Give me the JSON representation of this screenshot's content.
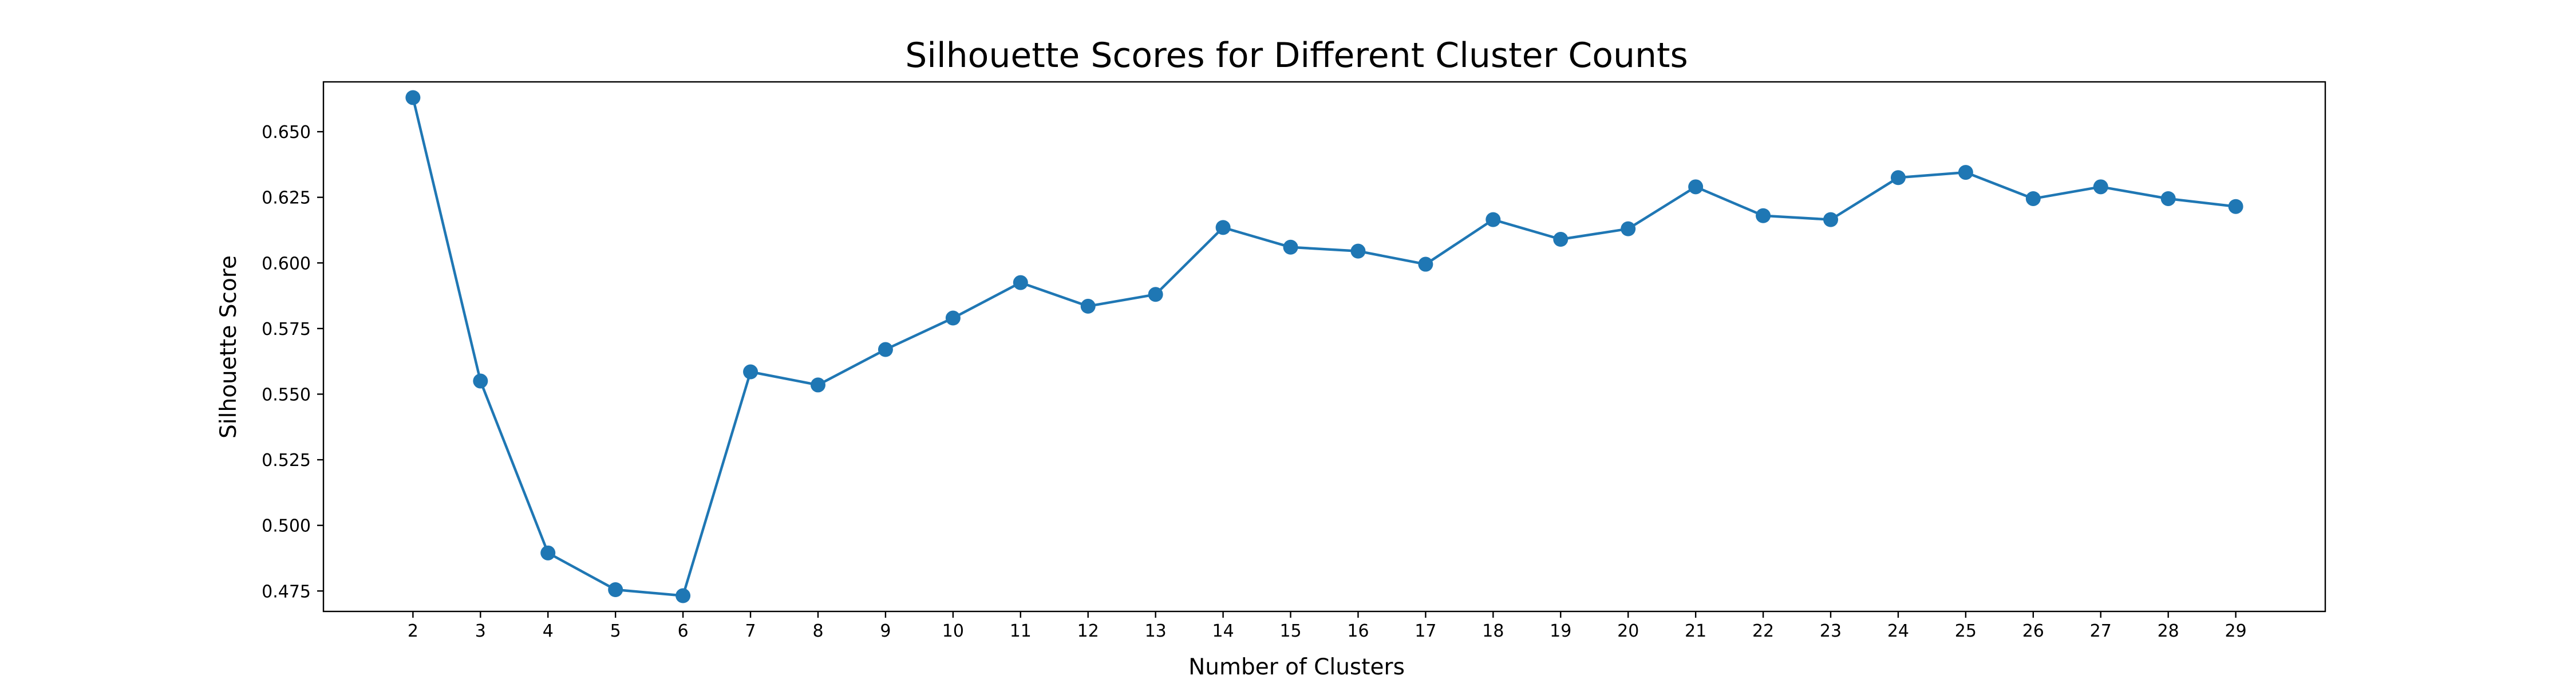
{
  "chart_data": {
    "type": "line",
    "title": "Silhouette Scores for Different Cluster Counts",
    "xlabel": "Number of Clusters",
    "ylabel": "Silhouette Score",
    "x": [
      2,
      3,
      4,
      5,
      6,
      7,
      8,
      9,
      10,
      11,
      12,
      13,
      14,
      15,
      16,
      17,
      18,
      19,
      20,
      21,
      22,
      23,
      24,
      25,
      26,
      27,
      28,
      29
    ],
    "series": [
      {
        "values": [
          0.663,
          0.555,
          0.4895,
          0.4755,
          0.4732,
          0.5585,
          0.5535,
          0.567,
          0.579,
          0.5925,
          0.5835,
          0.588,
          0.6135,
          0.606,
          0.6045,
          0.5995,
          0.6165,
          0.609,
          0.613,
          0.629,
          0.618,
          0.6165,
          0.6325,
          0.6345,
          0.6245,
          0.629,
          0.6245,
          0.6215
        ],
        "color": "#1f77b4",
        "marker": "circle"
      }
    ],
    "xlim": [
      0.674,
      30.326
    ],
    "ylim": [
      0.46721,
      0.66899
    ],
    "xticks": [
      2,
      3,
      4,
      5,
      6,
      7,
      8,
      9,
      10,
      11,
      12,
      13,
      14,
      15,
      16,
      17,
      18,
      19,
      20,
      21,
      22,
      23,
      24,
      25,
      26,
      27,
      28,
      29
    ],
    "yticks": [
      "0.475",
      "0.500",
      "0.525",
      "0.550",
      "0.575",
      "0.600",
      "0.625",
      "0.650"
    ],
    "grid": false,
    "legend": false
  }
}
